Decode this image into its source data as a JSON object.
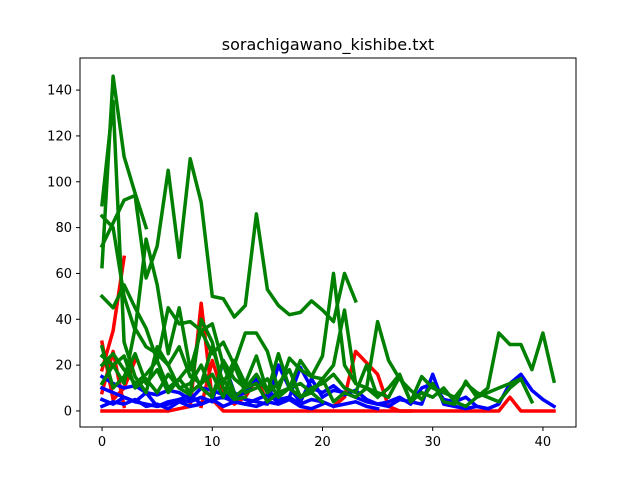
{
  "chart_data": {
    "type": "line",
    "title": "sorachigawano_kishibe.txt",
    "xlabel": "",
    "ylabel": "",
    "xlim": [
      -2,
      43
    ],
    "ylim": [
      -7,
      154
    ],
    "xticks": [
      0,
      10,
      20,
      30,
      40
    ],
    "yticks": [
      0,
      20,
      40,
      60,
      80,
      100,
      120,
      140
    ],
    "grid": false,
    "legend": "none",
    "colors": {
      "red": "#ff0000",
      "blue": "#0000ff",
      "green": "#008000"
    },
    "series": [
      {
        "color": "red",
        "x": [
          0,
          1,
          2
        ],
        "y": [
          18,
          35,
          67
        ]
      },
      {
        "color": "red",
        "x": [
          0,
          1,
          2,
          3
        ],
        "y": [
          30,
          5,
          10,
          22
        ]
      },
      {
        "color": "red",
        "x": [
          0,
          1,
          2
        ],
        "y": [
          8,
          26,
          2
        ]
      },
      {
        "color": "red",
        "x": [
          0,
          1,
          2,
          3,
          4,
          5,
          6,
          7,
          8,
          9,
          10,
          11,
          12,
          13,
          14,
          15,
          16,
          17,
          18,
          19,
          20,
          21,
          22,
          23,
          24,
          25,
          26,
          27,
          28,
          29,
          30,
          31,
          32,
          33,
          34,
          35,
          36,
          37,
          38,
          39,
          40,
          41
        ],
        "y": [
          0,
          0,
          0,
          0,
          0,
          0,
          0,
          1,
          2,
          47,
          5,
          0,
          0,
          0,
          0,
          0,
          0,
          0,
          0,
          0,
          0,
          0,
          0,
          0,
          0,
          0,
          0,
          0,
          0,
          0,
          0,
          0,
          0,
          0,
          0,
          0,
          0,
          6,
          0,
          0,
          0,
          0
        ]
      },
      {
        "color": "red",
        "x": [
          9,
          10,
          11,
          12,
          13,
          14,
          15
        ],
        "y": [
          2,
          22,
          7,
          3,
          6,
          14,
          4
        ]
      },
      {
        "color": "red",
        "x": [
          21,
          22,
          23,
          24,
          25,
          26,
          27,
          28
        ],
        "y": [
          2,
          6,
          26,
          21,
          16,
          2,
          0,
          0
        ]
      },
      {
        "color": "blue",
        "x": [
          0,
          1,
          2,
          3,
          4,
          5,
          6,
          7,
          8,
          9,
          10,
          11,
          12,
          13,
          14,
          15,
          16,
          17,
          18,
          19,
          20,
          21,
          22,
          23,
          24,
          25,
          26,
          27,
          28,
          29,
          30,
          31,
          32,
          33,
          34,
          35,
          36,
          37,
          38,
          39,
          40,
          41
        ],
        "y": [
          10,
          8,
          6,
          4,
          3,
          2,
          3,
          5,
          4,
          6,
          4,
          22,
          8,
          5,
          4,
          3,
          20,
          10,
          4,
          14,
          6,
          9,
          8,
          6,
          4,
          3,
          2,
          5,
          4,
          3,
          16,
          3,
          2,
          1,
          2,
          1,
          3,
          12,
          16,
          9,
          5,
          2
        ]
      },
      {
        "color": "blue",
        "x": [
          0,
          1,
          2,
          3,
          4,
          5,
          6,
          7,
          8,
          9,
          10,
          11,
          12,
          13,
          14,
          15,
          16,
          17,
          18,
          19,
          20,
          21,
          22,
          23,
          24,
          25,
          26,
          27,
          28,
          29,
          30,
          31,
          32,
          33,
          34,
          35
        ],
        "y": [
          15,
          12,
          10,
          11,
          8,
          7,
          9,
          8,
          5,
          10,
          9,
          7,
          6,
          8,
          14,
          9,
          5,
          6,
          19,
          10,
          8,
          11,
          7,
          9,
          5,
          3,
          4,
          6,
          3,
          10,
          12,
          5,
          4,
          6,
          2,
          1
        ]
      },
      {
        "color": "blue",
        "x": [
          0,
          1,
          2,
          3,
          4,
          5,
          6,
          7,
          8,
          9,
          10,
          11,
          12,
          13,
          14,
          15,
          16,
          17,
          18,
          19,
          20,
          21,
          22,
          23,
          24,
          25
        ],
        "y": [
          5,
          3,
          6,
          4,
          8,
          2,
          4,
          5,
          7,
          3,
          5,
          6,
          4,
          3,
          5,
          7,
          4,
          6,
          3,
          5,
          4,
          2,
          3,
          4,
          2,
          1
        ]
      },
      {
        "color": "blue",
        "x": [
          0,
          1,
          2,
          3,
          4,
          5,
          6,
          7,
          8,
          9,
          10,
          11,
          12,
          13,
          14,
          15,
          16,
          17,
          18,
          19,
          20
        ],
        "y": [
          2,
          4,
          3,
          5,
          2,
          3,
          1,
          4,
          2,
          3,
          5,
          2,
          4,
          3,
          2,
          4,
          3,
          5,
          2,
          1,
          3
        ]
      },
      {
        "color": "green",
        "x": [
          0,
          1,
          2,
          3,
          4
        ],
        "y": [
          63,
          146,
          111,
          95,
          80
        ]
      },
      {
        "color": "green",
        "x": [
          0,
          1,
          2,
          3,
          4,
          5,
          6,
          7,
          8,
          9,
          10,
          11,
          12,
          13
        ],
        "y": [
          90,
          135,
          30,
          15,
          8,
          28,
          20,
          10,
          7,
          40,
          30,
          10,
          5,
          6
        ]
      },
      {
        "color": "green",
        "x": [
          0,
          1,
          2,
          3,
          4,
          5,
          6,
          7,
          8,
          9,
          10,
          11,
          12,
          13,
          14,
          15,
          16,
          17,
          18,
          19,
          20,
          21,
          22,
          23
        ],
        "y": [
          72,
          82,
          92,
          94,
          58,
          72,
          105,
          67,
          110,
          91,
          50,
          49,
          41,
          46,
          86,
          53,
          46,
          42,
          43,
          48,
          44,
          39,
          60,
          48
        ]
      },
      {
        "color": "green",
        "x": [
          0,
          1,
          2,
          3,
          4,
          5,
          6,
          7,
          8,
          9,
          10,
          11,
          12
        ],
        "y": [
          85,
          80,
          50,
          35,
          75,
          55,
          25,
          45,
          18,
          35,
          38,
          20,
          8
        ]
      },
      {
        "color": "green",
        "x": [
          0,
          1,
          2,
          3,
          4,
          5,
          6,
          7,
          8,
          9,
          10,
          11,
          12,
          13,
          14,
          15,
          16,
          17,
          18,
          19,
          20,
          21,
          22,
          23,
          24,
          25,
          26,
          27,
          28,
          29,
          30,
          31,
          32,
          33,
          34,
          35,
          36,
          37,
          38,
          39,
          40,
          41
        ],
        "y": [
          50,
          45,
          55,
          45,
          36,
          22,
          45,
          38,
          39,
          35,
          25,
          30,
          20,
          34,
          34,
          26,
          9,
          23,
          18,
          15,
          14,
          20,
          44,
          12,
          10,
          39,
          22,
          14,
          9,
          5,
          12,
          4,
          3,
          13,
          6,
          10,
          34,
          29,
          29,
          18,
          34,
          13
        ]
      },
      {
        "color": "green",
        "x": [
          0,
          1,
          2,
          3,
          4,
          5,
          6,
          7,
          8,
          9,
          10,
          11,
          12,
          13,
          14,
          15,
          16,
          17,
          18,
          19,
          20,
          21,
          22,
          23,
          24,
          25,
          26,
          27,
          28,
          29,
          30,
          31,
          32,
          33,
          34,
          35,
          36,
          37,
          38,
          39
        ],
        "y": [
          24,
          20,
          12,
          36,
          28,
          25,
          20,
          28,
          15,
          12,
          28,
          12,
          22,
          12,
          24,
          8,
          25,
          10,
          22,
          15,
          24,
          60,
          20,
          12,
          10,
          8,
          6,
          15,
          4,
          15,
          10,
          8,
          6,
          12,
          8,
          6,
          4,
          10,
          14,
          4
        ]
      },
      {
        "color": "green",
        "x": [
          0,
          1,
          2,
          3,
          4,
          5,
          6,
          7,
          8,
          9,
          10,
          11,
          12,
          13,
          14,
          15,
          16,
          17,
          18,
          19,
          20,
          21,
          22,
          23,
          24,
          25,
          26,
          27,
          28,
          29,
          30,
          31,
          32,
          33,
          34,
          35,
          36,
          37,
          38
        ],
        "y": [
          28,
          10,
          15,
          25,
          12,
          18,
          8,
          14,
          20,
          10,
          6,
          22,
          14,
          10,
          16,
          8,
          12,
          18,
          6,
          10,
          12,
          16,
          10,
          8,
          20,
          6,
          10,
          16,
          4,
          8,
          6,
          10,
          4,
          2,
          6,
          8,
          10,
          12,
          14
        ]
      },
      {
        "color": "green",
        "x": [
          0,
          1,
          2,
          3,
          4,
          5,
          6,
          7,
          8,
          9,
          10,
          11,
          12,
          13,
          14,
          15,
          16,
          17,
          18,
          19,
          20,
          21,
          22,
          23,
          24,
          25
        ],
        "y": [
          20,
          25,
          18,
          12,
          16,
          22,
          10,
          14,
          8,
          12,
          16,
          6,
          20,
          8,
          10,
          14,
          6,
          10,
          12,
          8,
          14,
          4,
          8,
          6,
          10,
          6
        ]
      },
      {
        "color": "green",
        "x": [
          0,
          1,
          2,
          3,
          4,
          5,
          6,
          7,
          8,
          9,
          10,
          11,
          12,
          13,
          14,
          15,
          16,
          17,
          18,
          19,
          20
        ],
        "y": [
          12,
          20,
          24,
          10,
          14,
          8,
          16,
          10,
          12,
          20,
          8,
          14,
          6,
          10,
          12,
          4,
          8,
          10,
          6,
          8,
          4
        ]
      }
    ]
  }
}
